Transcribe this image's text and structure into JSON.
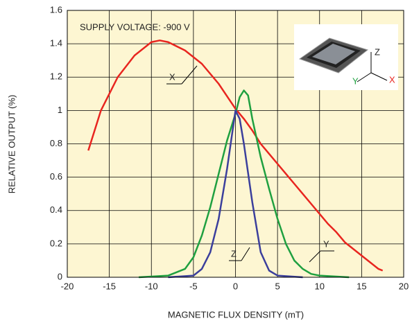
{
  "chart_data": {
    "type": "line",
    "annotation": "SUPPLY VOLTAGE: -900 V",
    "xlabel": "MAGNETIC FLUX DENSITY (mT)",
    "ylabel": "RELATIVE OUTPUT (%)",
    "xlim": [
      -20,
      20
    ],
    "ylim": [
      0,
      1.6
    ],
    "xticks": [
      -20,
      -15,
      -10,
      -5,
      0,
      5,
      10,
      15,
      20
    ],
    "yticks": [
      0,
      0.2,
      0.4,
      0.6,
      0.8,
      1,
      1.2,
      1.4,
      1.6
    ],
    "grid": true,
    "inset_labels": [
      "Z",
      "Y",
      "X"
    ],
    "series": [
      {
        "name": "X",
        "color": "#e8251f",
        "x": [
          -17.5,
          -16,
          -15,
          -14,
          -12,
          -10,
          -9,
          -8,
          -6,
          -4,
          -2,
          0,
          1,
          2,
          3,
          4,
          5,
          6,
          7,
          8,
          9,
          10,
          11,
          12,
          13,
          14,
          15,
          16,
          17,
          17.5
        ],
        "values": [
          0.76,
          1.0,
          1.1,
          1.2,
          1.33,
          1.41,
          1.42,
          1.41,
          1.36,
          1.28,
          1.16,
          1.01,
          0.95,
          0.88,
          0.8,
          0.74,
          0.68,
          0.62,
          0.56,
          0.5,
          0.44,
          0.38,
          0.32,
          0.27,
          0.21,
          0.17,
          0.13,
          0.09,
          0.05,
          0.04
        ]
      },
      {
        "name": "Y",
        "color": "#1fa040",
        "x": [
          -11.5,
          -8,
          -6,
          -5,
          -4,
          -3,
          -2,
          -1,
          0,
          0.5,
          1,
          1.5,
          2,
          3,
          4,
          5,
          6,
          7,
          8,
          9,
          10,
          13.5
        ],
        "values": [
          0,
          0.01,
          0.05,
          0.12,
          0.25,
          0.42,
          0.62,
          0.82,
          0.98,
          1.08,
          1.12,
          1.09,
          0.95,
          0.72,
          0.53,
          0.35,
          0.2,
          0.1,
          0.05,
          0.02,
          0.01,
          0
        ]
      },
      {
        "name": "Z",
        "color": "#3b3f9c",
        "x": [
          -8,
          -5,
          -4,
          -3,
          -2,
          -1,
          0,
          0.5,
          1,
          2,
          3,
          4,
          5,
          8
        ],
        "values": [
          0,
          0.01,
          0.05,
          0.15,
          0.35,
          0.65,
          1.0,
          0.95,
          0.8,
          0.45,
          0.15,
          0.04,
          0.01,
          0
        ]
      }
    ]
  }
}
